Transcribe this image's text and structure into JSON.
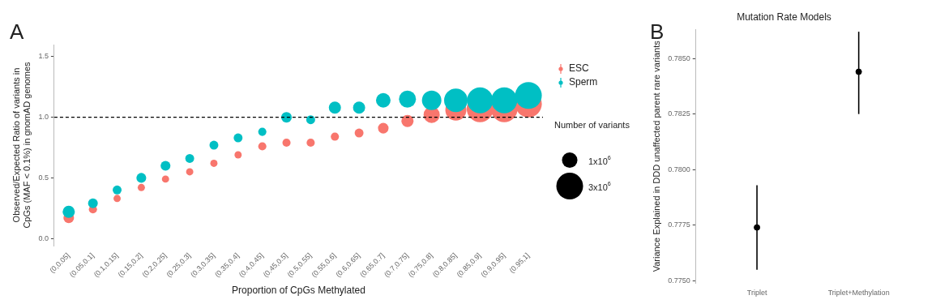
{
  "chart_data": [
    {
      "type": "bubble",
      "annotations": [
        "A"
      ],
      "xlabel": "Proportion of CpGs Methylated",
      "ylabel": "Observed/Expected Ratio of variants in\nCpGs (MAF < 0.1%) in gnomAD genomes",
      "legend_title": "Number of variants",
      "legend": "right",
      "categories": [
        "(0,0.05]",
        "(0.05,0.1]",
        "(0.1,0.15]",
        "(0.15,0.2]",
        "(0.2,0.25]",
        "(0.25,0.3]",
        "(0.3,0.35]",
        "(0.35,0.4]",
        "(0.4,0.45]",
        "(0.45,0.5]",
        "(0.5,0.55]",
        "(0.55,0.6]",
        "(0.6,0.65]",
        "(0.65,0.7]",
        "(0.7,0.75]",
        "(0.75,0.8]",
        "(0.8,0.85]",
        "(0.85,0.9]",
        "(0.9,0.95]",
        "(0.95,1]"
      ],
      "series": [
        {
          "name": "ESC",
          "color": "#f8766d",
          "values": [
            0.17,
            0.24,
            0.33,
            0.42,
            0.49,
            0.55,
            0.62,
            0.69,
            0.76,
            0.79,
            0.79,
            0.84,
            0.87,
            0.91,
            0.97,
            1.02,
            1.06,
            1.07,
            1.07,
            1.11
          ],
          "sizes": [
            470000,
            280000,
            220000,
            220000,
            220000,
            220000,
            220000,
            220000,
            280000,
            280000,
            280000,
            280000,
            330000,
            470000,
            620000,
            1100000,
            1860000,
            3000000,
            3000000,
            3000000
          ]
        },
        {
          "name": "Sperm",
          "color": "#00bfc4",
          "values": [
            0.22,
            0.29,
            0.4,
            0.5,
            0.6,
            0.66,
            0.77,
            0.83,
            0.88,
            1.0,
            0.98,
            1.08,
            1.08,
            1.14,
            1.15,
            1.14,
            1.14,
            1.14,
            1.14,
            1.18
          ],
          "sizes": [
            620000,
            400000,
            330000,
            400000,
            400000,
            330000,
            330000,
            330000,
            280000,
            470000,
            330000,
            620000,
            620000,
            890000,
            1210000,
            1590000,
            2320000,
            2820000,
            2820000,
            3000000
          ]
        }
      ],
      "size_legend": [
        {
          "value": 1000000,
          "label": "1x10$^{6}$"
        },
        {
          "value": 3000000,
          "label": "3x10$^{6}$"
        }
      ],
      "ylim": [
        -0.06,
        1.6
      ],
      "yticks": [
        {
          "value": 0,
          "label": "0.0"
        },
        {
          "value": 0.5,
          "label": "0.5"
        },
        {
          "value": 1,
          "label": "1.0"
        },
        {
          "value": 1.5,
          "label": "1.5"
        }
      ],
      "ref_lines": [
        {
          "axis": "y",
          "value": 1,
          "color": "#000000",
          "line_style": "dashed"
        }
      ]
    },
    {
      "type": "scatter",
      "annotations": [
        "B"
      ],
      "title": "Mutation Rate Models",
      "ylabel": "Variance Explained in DDD unaffected parent rare variants",
      "categories": [
        "Triplet",
        "Triplet+Methylation"
      ],
      "marker": "circle",
      "series": [
        {
          "color": "#000000",
          "values": [
            0.7774,
            0.7844
          ],
          "errors": [
            [
              0.7755,
              0.7793
            ],
            [
              0.7825,
              0.7862
            ]
          ]
        }
      ],
      "ylim": [
        0.7749,
        0.7863
      ],
      "yticks": [
        {
          "value": 0.775,
          "label": "0.7750"
        },
        {
          "value": 0.7775,
          "label": "0.7775"
        },
        {
          "value": 0.78,
          "label": "0.7800"
        },
        {
          "value": 0.7825,
          "label": "0.7825"
        },
        {
          "value": 0.785,
          "label": "0.7850"
        }
      ]
    }
  ]
}
